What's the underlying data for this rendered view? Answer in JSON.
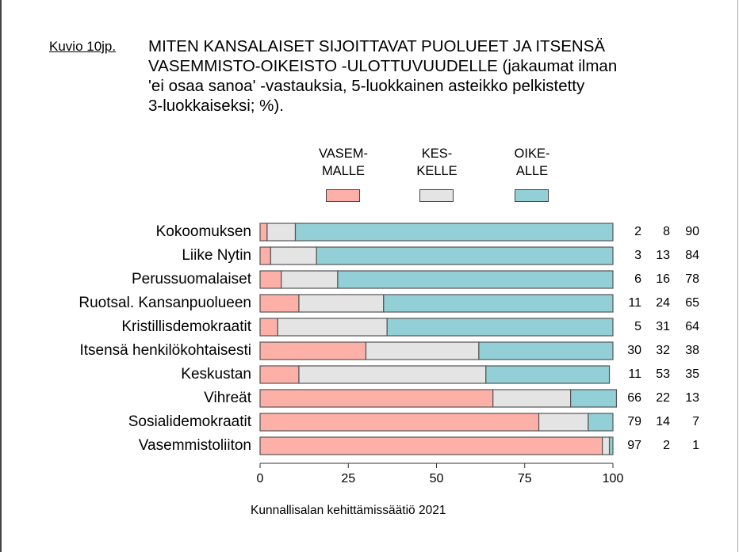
{
  "figure_label": "Kuvio 10jp.",
  "title_lines": [
    "MITEN KANSALAISET SIJOITTAVAT PUOLUEET JA ITSENSÄ",
    "VASEMMISTO-OIKEISTO -ULOTTUVUUDELLE (jakaumat ilman",
    "'ei osaa sanoa' -vastauksia, 5-luokkainen asteikko pelkistetty",
    "3-luokkaiseksi; %)."
  ],
  "source": "Kunnallisalan kehittämissäätiö 2021",
  "chart_data": {
    "type": "bar",
    "orientation": "horizontal",
    "stacked": true,
    "title": "MITEN KANSALAISET SIJOITTAVAT PUOLUEET JA ITSENSÄ VASEMMISTO-OIKEISTO -ULOTTUVUUDELLE (jakaumat ilman 'ei osaa sanoa' -vastauksia, 5-luokkainen asteikko pelkistetty 3-luokkaiseksi; %).",
    "xlabel": "",
    "ylabel": "",
    "xlim": [
      0,
      100
    ],
    "xticks": [
      0,
      25,
      50,
      75,
      100
    ],
    "grid": false,
    "legend_position": "top",
    "categories": [
      "Kokoomuksen",
      "Liike Nytin",
      "Perussuomalaiset",
      "Ruotsal. Kansanpuolueen",
      "Kristillisdemokraatit",
      "Itsensä henkilökohtaisesti",
      "Keskustan",
      "Vihreät",
      "Sosialidemokraatit",
      "Vasemmistoliiton"
    ],
    "series": [
      {
        "name": "VASEMMALLE",
        "legend_lines": [
          "VASEM-",
          "MALLE"
        ],
        "color": "#fdb0a8",
        "values": [
          2,
          3,
          6,
          11,
          5,
          30,
          11,
          66,
          79,
          97
        ]
      },
      {
        "name": "KESKELLE",
        "legend_lines": [
          "KES-",
          "KELLE"
        ],
        "color": "#e4e4e4",
        "values": [
          8,
          13,
          16,
          24,
          31,
          32,
          53,
          22,
          14,
          2
        ]
      },
      {
        "name": "OIKEALLE",
        "legend_lines": [
          "OIKE-",
          "ALLE"
        ],
        "color": "#92cfd6",
        "values": [
          90,
          84,
          78,
          65,
          64,
          38,
          35,
          13,
          7,
          1
        ]
      }
    ]
  }
}
